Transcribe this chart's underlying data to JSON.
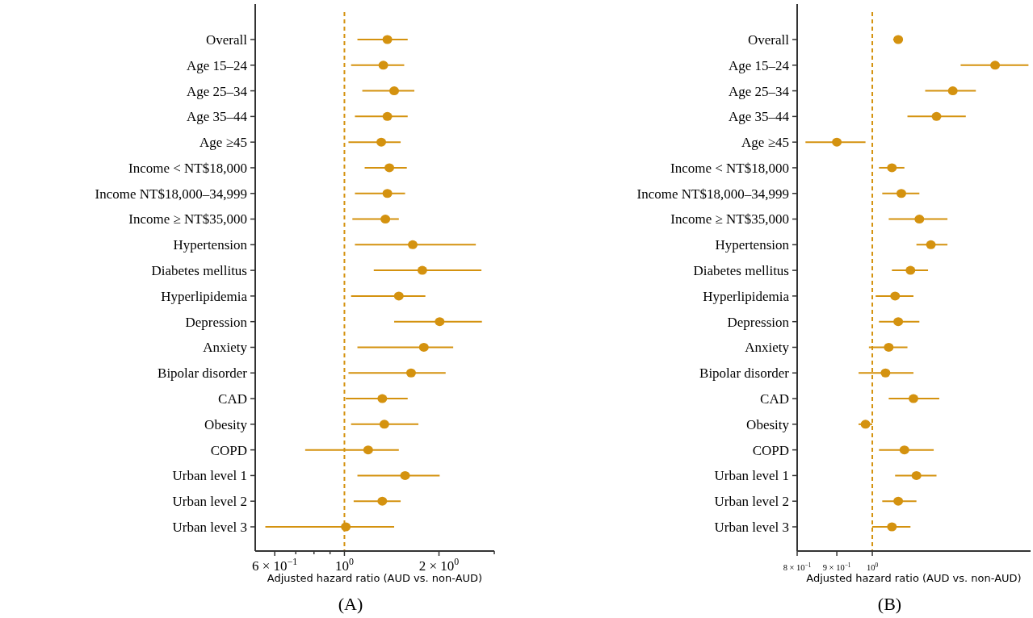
{
  "chart_data": [
    {
      "type": "scatter",
      "orientation": "horizontal",
      "log": "x",
      "marker": "circle",
      "xlabel": "Adjusted hazard ratio (AUD vs. non-AUD)",
      "categories": [
        "Overall",
        "Age 15–24",
        "Age 25–34",
        "Age 35–44",
        "Age ≥45",
        "Income < NT$18,000",
        "Income NT$18,000–34,999",
        "Income ≥ NT$35,000",
        "Hypertension",
        "Diabetes mellitus",
        "Hyperlipidemia",
        "Depression",
        "Anxiety",
        "Bipolar disorder",
        "CAD",
        "Obesity",
        "COPD",
        "Urban level 1",
        "Urban level 2",
        "Urban level 3"
      ],
      "series": [
        {
          "color": "#d4920f",
          "values": [
            1.37,
            1.33,
            1.44,
            1.37,
            1.31,
            1.39,
            1.37,
            1.35,
            1.65,
            1.77,
            1.49,
            2.01,
            1.79,
            1.63,
            1.32,
            1.34,
            1.19,
            1.56,
            1.32,
            1.01
          ],
          "errors": [
            [
              1.1,
              1.59
            ],
            [
              1.05,
              1.55
            ],
            [
              1.14,
              1.67
            ],
            [
              1.08,
              1.59
            ],
            [
              1.03,
              1.51
            ],
            [
              1.16,
              1.58
            ],
            [
              1.08,
              1.56
            ],
            [
              1.06,
              1.49
            ],
            [
              1.08,
              2.62
            ],
            [
              1.24,
              2.73
            ],
            [
              1.05,
              1.81
            ],
            [
              1.44,
              2.74
            ],
            [
              1.1,
              2.22
            ],
            [
              1.03,
              2.1
            ],
            [
              1.01,
              1.59
            ],
            [
              1.05,
              1.72
            ],
            [
              0.75,
              1.49
            ],
            [
              1.1,
              2.01
            ],
            [
              1.07,
              1.51
            ],
            [
              0.56,
              1.44
            ]
          ]
        }
      ],
      "xlim": [
        0.52,
        3.0
      ],
      "xticks": [
        {
          "value": 0.6,
          "label": "6 × 10$^{−1}$"
        },
        {
          "value": 0.7,
          "label": null
        },
        {
          "value": 0.8,
          "label": null
        },
        {
          "value": 0.9,
          "label": null
        },
        {
          "value": 1,
          "label": "10$^{0}$"
        },
        {
          "value": 2,
          "label": "2 × 10$^{0}$"
        },
        {
          "value": 3,
          "label": null
        }
      ],
      "ref_lines": [
        {
          "axis": "x",
          "value": 1,
          "line_style": "dashed",
          "color": "#d4920f"
        }
      ],
      "annotations": [
        "(A)"
      ]
    },
    {
      "type": "scatter",
      "orientation": "horizontal",
      "log": "x",
      "marker": "circle",
      "xlabel": "Adjusted hazard ratio (AUD vs. non-AUD)",
      "categories": [
        "Overall",
        "Age 15–24",
        "Age 25–34",
        "Age 35–44",
        "Age ≥45",
        "Income < NT$18,000",
        "Income NT$18,000–34,999",
        "Income ≥ NT$35,000",
        "Hypertension",
        "Diabetes mellitus",
        "Hyperlipidemia",
        "Depression",
        "Anxiety",
        "Bipolar disorder",
        "CAD",
        "Obesity",
        "COPD",
        "Urban level 1",
        "Urban level 2",
        "Urban level 3"
      ],
      "series": [
        {
          "color": "#d4920f",
          "values": [
            1.08,
            1.44,
            1.27,
            1.21,
            0.9,
            1.06,
            1.09,
            1.15,
            1.19,
            1.12,
            1.07,
            1.08,
            1.05,
            1.04,
            1.13,
            0.98,
            1.1,
            1.14,
            1.08,
            1.06
          ],
          "errors": [
            [
              1.064,
              1.095
            ],
            [
              1.3,
              1.59
            ],
            [
              1.17,
              1.36
            ],
            [
              1.11,
              1.32
            ],
            [
              0.82,
              0.98
            ],
            [
              1.02,
              1.1
            ],
            [
              1.03,
              1.15
            ],
            [
              1.05,
              1.25
            ],
            [
              1.14,
              1.25
            ],
            [
              1.06,
              1.18
            ],
            [
              1.01,
              1.13
            ],
            [
              1.02,
              1.15
            ],
            [
              0.99,
              1.11
            ],
            [
              0.96,
              1.13
            ],
            [
              1.05,
              1.22
            ],
            [
              0.96,
              1.0
            ],
            [
              1.02,
              1.2
            ],
            [
              1.07,
              1.21
            ],
            [
              1.03,
              1.14
            ],
            [
              1.0,
              1.12
            ]
          ]
        }
      ],
      "xlim": [
        0.8,
        1.6
      ],
      "xticks": [
        {
          "value": 0.8,
          "label": "8 × 10$^{−1}$"
        },
        {
          "value": 0.9,
          "label": "9 × 10$^{−1}$"
        },
        {
          "value": 1,
          "label": "10$^{0}$"
        }
      ],
      "ref_lines": [
        {
          "axis": "x",
          "value": 1,
          "line_style": "dashed",
          "color": "#d4920f"
        }
      ],
      "annotations": [
        "(B)"
      ]
    }
  ]
}
